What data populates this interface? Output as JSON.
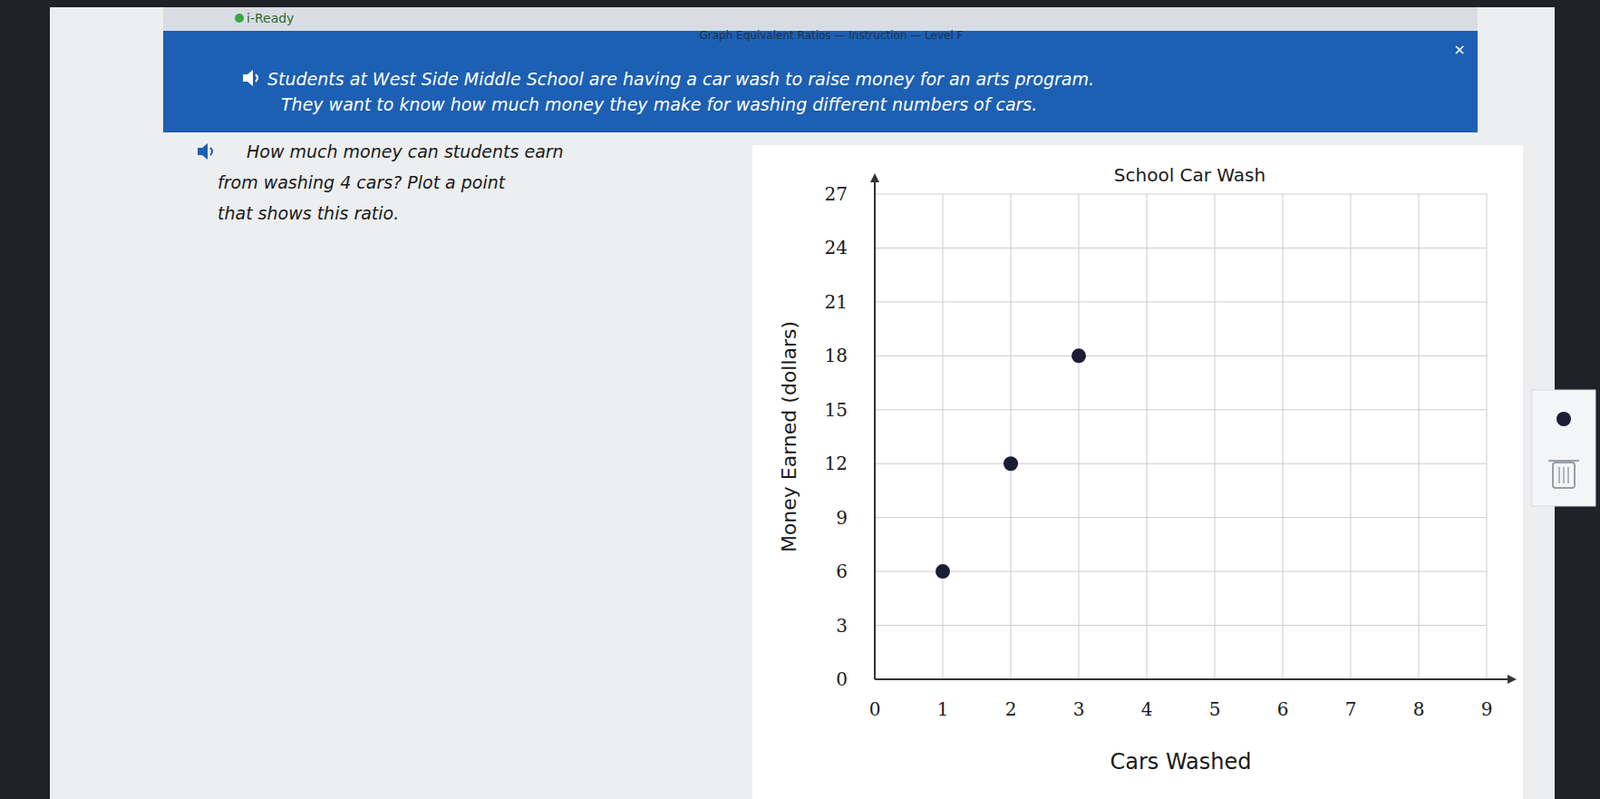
{
  "page": {
    "logo": "i-Ready",
    "lesson": "Graph Equivalent Ratios — Instruction — Level F",
    "close": "×",
    "intro": [
      "Students at West Side Middle School are having a car wash to raise money for an arts program.",
      "They want to know how much money they make for washing different numbers of cars."
    ],
    "question": [
      "How much money can students earn",
      "from washing 4 cars? Plot a point",
      "that shows this ratio."
    ]
  },
  "chart_data": {
    "type": "scatter",
    "title": "School Car Wash",
    "x_label": "Cars Washed",
    "y_label": "Money Earned (dollars)",
    "x": [
      1,
      2,
      3
    ],
    "values": [
      6,
      12,
      18
    ],
    "color": "#1b1d33",
    "marker": "circle",
    "xlim": [
      0,
      9
    ],
    "xticks": [
      0,
      1,
      2,
      3,
      4,
      5,
      6,
      7,
      8,
      9
    ],
    "ylim": [
      0,
      27
    ],
    "yticks": [
      0,
      3,
      6,
      9,
      12,
      15,
      18,
      21,
      24,
      27
    ],
    "grid": true
  }
}
